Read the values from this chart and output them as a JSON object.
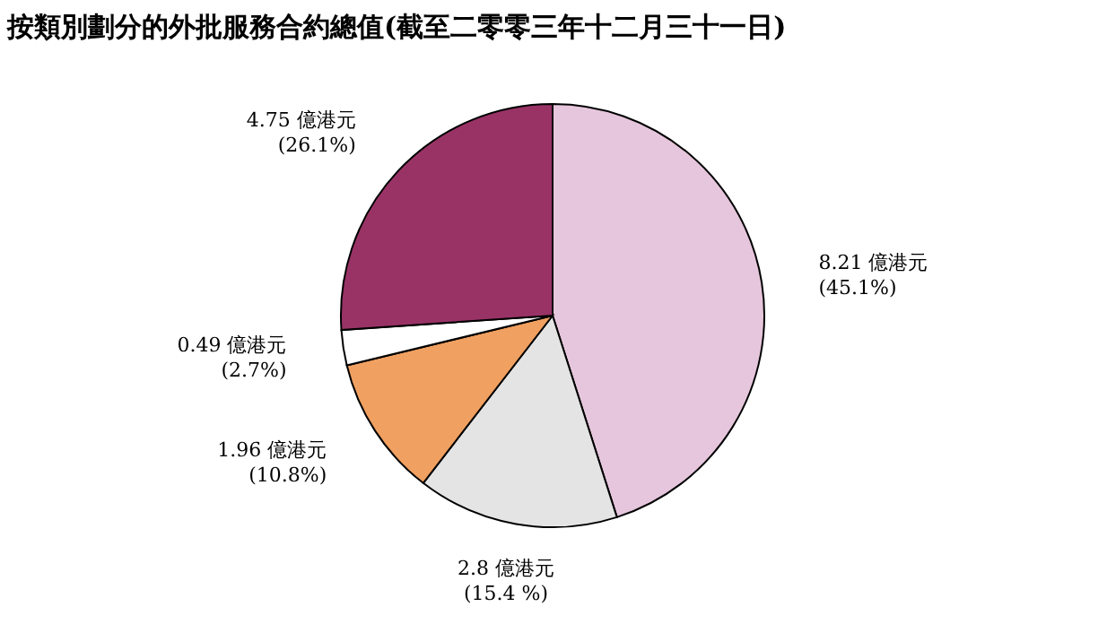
{
  "chart_data": {
    "type": "pie",
    "title": "按類別劃分的外批服務合約總值(截至二零零三年十二月三十一日)",
    "categories": [
      null,
      null,
      null,
      null,
      null
    ],
    "values": [
      8.21,
      2.8,
      1.96,
      0.49,
      4.75
    ],
    "colors": [
      "#e6c6dc",
      "#e4e4e4",
      "#f0a060",
      "#ffffff",
      "#993366"
    ],
    "value_labels": [
      "8.21 億港元\n(45.1%)",
      "2.8 億港元\n(15.4 %)",
      "1.96 億港元\n(10.8%)",
      "0.49 億港元\n(2.7%)",
      "4.75 億港元\n(26.1%)"
    ]
  }
}
